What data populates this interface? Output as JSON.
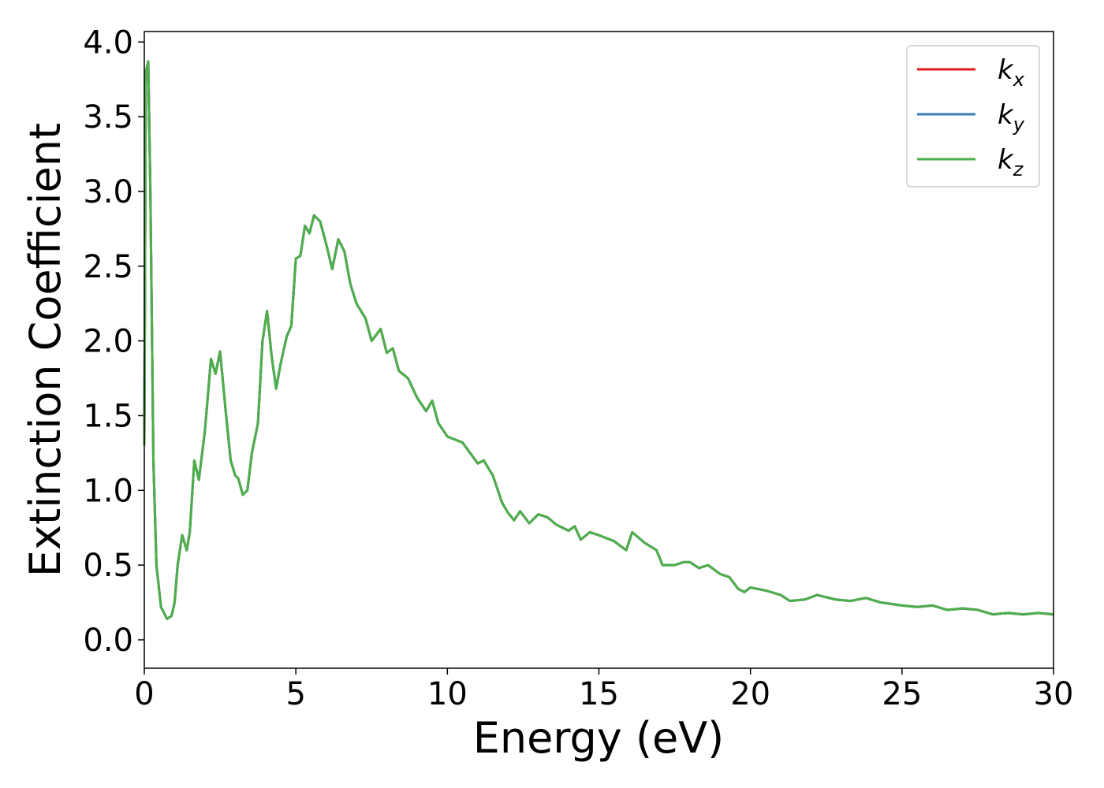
{
  "chart_data": {
    "type": "line",
    "xlabel": "Energy (eV)",
    "ylabel": "Extinction Coefficient",
    "x": [
      0,
      0.05,
      0.13,
      0.2,
      0.3,
      0.4,
      0.55,
      0.75,
      0.9,
      1.0,
      1.1,
      1.25,
      1.4,
      1.5,
      1.65,
      1.8,
      2.0,
      2.2,
      2.35,
      2.5,
      2.7,
      2.85,
      3.0,
      3.1,
      3.25,
      3.4,
      3.55,
      3.75,
      3.9,
      4.05,
      4.2,
      4.35,
      4.5,
      4.7,
      4.85,
      5.0,
      5.15,
      5.3,
      5.45,
      5.6,
      5.8,
      6.0,
      6.2,
      6.4,
      6.6,
      6.8,
      7.0,
      7.3,
      7.5,
      7.8,
      8.0,
      8.2,
      8.4,
      8.7,
      9.0,
      9.3,
      9.5,
      9.7,
      10.0,
      10.5,
      11.0,
      11.2,
      11.5,
      11.8,
      12.0,
      12.2,
      12.4,
      12.7,
      13.0,
      13.3,
      13.6,
      14.0,
      14.2,
      14.4,
      14.7,
      15.0,
      15.5,
      15.9,
      16.1,
      16.5,
      16.9,
      17.1,
      17.5,
      17.8,
      18.0,
      18.3,
      18.6,
      19.0,
      19.3,
      19.6,
      19.8,
      20.0,
      20.5,
      21.0,
      21.3,
      21.8,
      22.2,
      22.8,
      23.3,
      23.8,
      24.3,
      25.0,
      25.5,
      26.0,
      26.5,
      27.0,
      27.5,
      28.0,
      28.5,
      29.0,
      29.5,
      30.0
    ],
    "series": [
      {
        "name": "kx",
        "color": "#e41a1c",
        "values": [
          1.3,
          3.8,
          3.87,
          3.0,
          1.2,
          0.5,
          0.22,
          0.14,
          0.16,
          0.25,
          0.5,
          0.7,
          0.6,
          0.72,
          1.2,
          1.07,
          1.4,
          1.88,
          1.78,
          1.93,
          1.5,
          1.2,
          1.1,
          1.08,
          0.97,
          1.0,
          1.25,
          1.45,
          2.0,
          2.2,
          1.9,
          1.68,
          1.85,
          2.03,
          2.1,
          2.55,
          2.57,
          2.77,
          2.72,
          2.84,
          2.8,
          2.65,
          2.48,
          2.68,
          2.6,
          2.38,
          2.25,
          2.15,
          2.0,
          2.08,
          1.92,
          1.95,
          1.8,
          1.75,
          1.62,
          1.53,
          1.6,
          1.45,
          1.36,
          1.32,
          1.18,
          1.2,
          1.1,
          0.92,
          0.85,
          0.8,
          0.86,
          0.78,
          0.84,
          0.82,
          0.77,
          0.73,
          0.76,
          0.67,
          0.72,
          0.7,
          0.66,
          0.6,
          0.72,
          0.65,
          0.6,
          0.5,
          0.5,
          0.52,
          0.52,
          0.48,
          0.5,
          0.44,
          0.42,
          0.34,
          0.32,
          0.35,
          0.33,
          0.3,
          0.26,
          0.27,
          0.3,
          0.27,
          0.26,
          0.28,
          0.25,
          0.23,
          0.22,
          0.23,
          0.2,
          0.21,
          0.2,
          0.17,
          0.18,
          0.17,
          0.18,
          0.17
        ]
      },
      {
        "name": "ky",
        "color": "#377eb8",
        "values": [
          1.3,
          3.8,
          3.87,
          3.0,
          1.2,
          0.5,
          0.22,
          0.14,
          0.16,
          0.25,
          0.5,
          0.7,
          0.6,
          0.72,
          1.2,
          1.07,
          1.4,
          1.88,
          1.78,
          1.93,
          1.5,
          1.2,
          1.1,
          1.08,
          0.97,
          1.0,
          1.25,
          1.45,
          2.0,
          2.2,
          1.9,
          1.68,
          1.85,
          2.03,
          2.1,
          2.55,
          2.57,
          2.77,
          2.72,
          2.84,
          2.8,
          2.65,
          2.48,
          2.68,
          2.6,
          2.38,
          2.25,
          2.15,
          2.0,
          2.08,
          1.92,
          1.95,
          1.8,
          1.75,
          1.62,
          1.53,
          1.6,
          1.45,
          1.36,
          1.32,
          1.18,
          1.2,
          1.1,
          0.92,
          0.85,
          0.8,
          0.86,
          0.78,
          0.84,
          0.82,
          0.77,
          0.73,
          0.76,
          0.67,
          0.72,
          0.7,
          0.66,
          0.6,
          0.72,
          0.65,
          0.6,
          0.5,
          0.5,
          0.52,
          0.52,
          0.48,
          0.5,
          0.44,
          0.42,
          0.34,
          0.32,
          0.35,
          0.33,
          0.3,
          0.26,
          0.27,
          0.3,
          0.27,
          0.26,
          0.28,
          0.25,
          0.23,
          0.22,
          0.23,
          0.2,
          0.21,
          0.2,
          0.17,
          0.18,
          0.17,
          0.18,
          0.17
        ]
      },
      {
        "name": "kz",
        "color": "#4daf4a",
        "values": [
          1.3,
          3.8,
          3.87,
          3.0,
          1.2,
          0.5,
          0.22,
          0.14,
          0.16,
          0.25,
          0.5,
          0.7,
          0.6,
          0.72,
          1.2,
          1.07,
          1.4,
          1.88,
          1.78,
          1.93,
          1.5,
          1.2,
          1.1,
          1.08,
          0.97,
          1.0,
          1.25,
          1.45,
          2.0,
          2.2,
          1.9,
          1.68,
          1.85,
          2.03,
          2.1,
          2.55,
          2.57,
          2.77,
          2.72,
          2.84,
          2.8,
          2.65,
          2.48,
          2.68,
          2.6,
          2.38,
          2.25,
          2.15,
          2.0,
          2.08,
          1.92,
          1.95,
          1.8,
          1.75,
          1.62,
          1.53,
          1.6,
          1.45,
          1.36,
          1.32,
          1.18,
          1.2,
          1.1,
          0.92,
          0.85,
          0.8,
          0.86,
          0.78,
          0.84,
          0.82,
          0.77,
          0.73,
          0.76,
          0.67,
          0.72,
          0.7,
          0.66,
          0.6,
          0.72,
          0.65,
          0.6,
          0.5,
          0.5,
          0.52,
          0.52,
          0.48,
          0.5,
          0.44,
          0.42,
          0.34,
          0.32,
          0.35,
          0.33,
          0.3,
          0.26,
          0.27,
          0.3,
          0.27,
          0.26,
          0.28,
          0.25,
          0.23,
          0.22,
          0.23,
          0.2,
          0.21,
          0.2,
          0.17,
          0.18,
          0.17,
          0.18,
          0.17
        ]
      }
    ],
    "xlim": [
      0,
      30
    ],
    "xticks": [
      0,
      5,
      10,
      15,
      20,
      25,
      30
    ],
    "ylim": [
      -0.19,
      4.07
    ],
    "yticks": [
      {
        "value": 0,
        "label": "0.0"
      },
      0.5,
      {
        "value": 1,
        "label": "1.0"
      },
      1.5,
      {
        "value": 2,
        "label": "2.0"
      },
      2.5,
      {
        "value": 3,
        "label": "3.0"
      },
      3.5,
      {
        "value": 4,
        "label": "4.0"
      }
    ],
    "grid": false,
    "legend": "upper right"
  }
}
